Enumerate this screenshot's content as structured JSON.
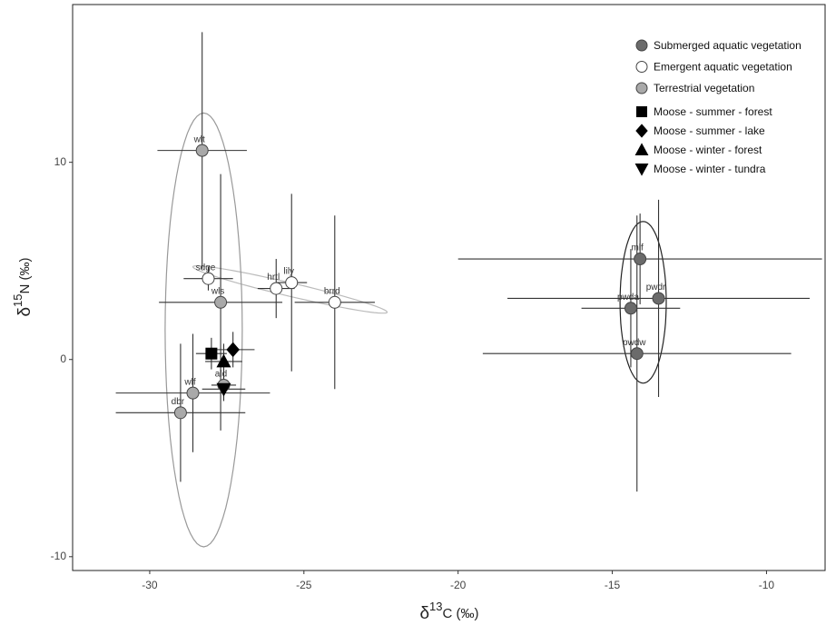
{
  "chart_data": {
    "type": "scatter",
    "x_label": {
      "prefix": "δ",
      "sup": "13",
      "text": "C (‰)"
    },
    "y_label": {
      "prefix": "δ",
      "sup": "15",
      "text": "N (‰)"
    },
    "xlim": [
      -32.5,
      -8.1
    ],
    "ylim": [
      -10.7,
      18
    ],
    "xticks": [
      -30,
      -25,
      -20,
      -15,
      -10
    ],
    "yticks": [
      -10,
      0,
      10
    ],
    "legend": "top-right",
    "series": [
      {
        "name": "Submerged aquatic vegetation",
        "marker": "circle",
        "color": "#6b6b6b",
        "labels": [
          "mlf",
          "pwdr",
          "pwda",
          "pwdw"
        ],
        "x": [
          -14.1,
          -13.5,
          -14.4,
          -14.2
        ],
        "y": [
          5.1,
          3.1,
          2.6,
          0.3
        ],
        "xerr": [
          5.9,
          4.9,
          1.6,
          5.0
        ],
        "yerr": [
          2.3,
          5.0,
          3.0,
          7.0
        ]
      },
      {
        "name": "Emergent aquatic vegetation",
        "marker": "circle",
        "color": "#ffffff",
        "labels": [
          "sdge",
          "hrtl",
          "lily",
          "brrd"
        ],
        "x": [
          -28.1,
          -25.9,
          -25.4,
          -24.0
        ],
        "y": [
          4.1,
          3.6,
          3.9,
          2.9
        ],
        "xerr": [
          0.8,
          0.6,
          0.5,
          1.3
        ],
        "yerr": [
          0.6,
          1.5,
          4.5,
          4.4
        ]
      },
      {
        "name": "Terrestrial vegetation",
        "marker": "circle",
        "color": "#a9a9a9",
        "labels": [
          "wlt",
          "wls",
          "wlf",
          "dbr",
          "ald"
        ],
        "x": [
          -28.3,
          -27.7,
          -28.6,
          -29.0,
          -27.6
        ],
        "y": [
          10.6,
          2.9,
          -1.7,
          -2.7,
          -1.3
        ],
        "xerr": [
          1.45,
          2.0,
          2.5,
          2.1,
          0.4
        ],
        "yerr": [
          6.0,
          6.5,
          3.0,
          3.5,
          0.8
        ]
      },
      {
        "name": "Moose - summer - forest",
        "marker": "square",
        "color": "#000000",
        "x": [
          -28.0
        ],
        "y": [
          0.3
        ],
        "xerr": [
          0.5
        ],
        "yerr": [
          0.8
        ]
      },
      {
        "name": "Moose - summer - lake",
        "marker": "diamond",
        "color": "#000000",
        "x": [
          -27.3
        ],
        "y": [
          0.5
        ],
        "xerr": [
          0.7
        ],
        "yerr": [
          0.9
        ]
      },
      {
        "name": "Moose - winter - forest",
        "marker": "triangle",
        "color": "#000000",
        "x": [
          -27.6
        ],
        "y": [
          -0.1
        ],
        "xerr": [
          0.6
        ],
        "yerr": [
          0.9
        ]
      },
      {
        "name": "Moose - winter - tundra",
        "marker": "triangle-down",
        "color": "#000000",
        "x": [
          -27.6
        ],
        "y": [
          -1.5
        ],
        "xerr": [
          0.7
        ],
        "yerr": [
          0.6
        ]
      }
    ],
    "ellipses": [
      {
        "color": "#222222",
        "cx": -14.0,
        "cy": 2.9,
        "rx": 0.75,
        "ry": 4.1,
        "slope": 0
      },
      {
        "color": "#bbbbbb",
        "cx": -25.45,
        "cy": 3.55,
        "rx": 3.15,
        "ry": 0.35,
        "slope": -0.365
      },
      {
        "color": "#999999",
        "cx": -28.25,
        "cy": 1.5,
        "rx": 1.25,
        "ry": 11.0,
        "slope": 0
      }
    ]
  }
}
